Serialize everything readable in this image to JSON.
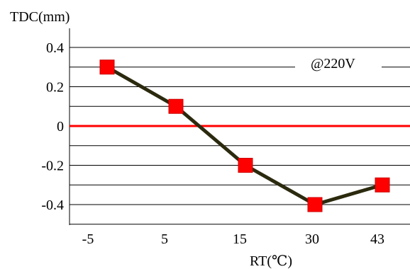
{
  "chart_data": {
    "type": "line",
    "ylabel": "TDC(mm)",
    "xlabel": "RT(℃)",
    "annotation": "@220V",
    "categories": [
      "-5",
      "5",
      "15",
      "30",
      "43"
    ],
    "yticks": [
      "0.4",
      "0.2",
      "0",
      "-0.2",
      "-0.4"
    ],
    "ytick_values": [
      0.4,
      0.2,
      0,
      -0.2,
      -0.4
    ],
    "ylim": [
      -0.5,
      0.5
    ],
    "grid": true,
    "series": [
      {
        "values": [
          0.3,
          0.1,
          -0.2,
          -0.4,
          -0.3
        ]
      }
    ],
    "colors": {
      "line": "#2b2a0e",
      "marker": "#ff0000",
      "marker_border": "#cc0000",
      "zero_line": "#ff0000",
      "grid": "#000000"
    }
  }
}
